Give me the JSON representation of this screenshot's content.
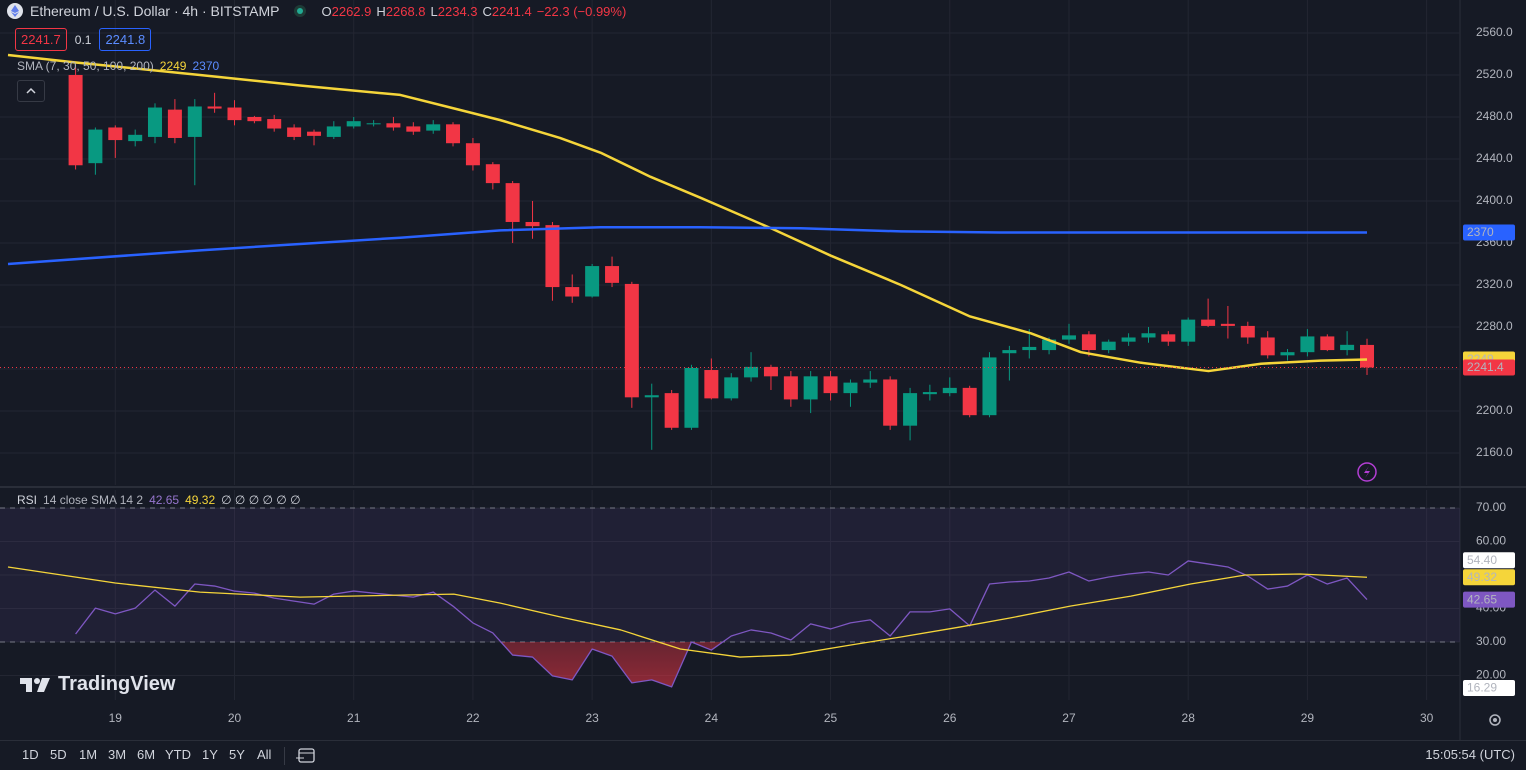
{
  "header": {
    "symbol": "Ethereum / U.S. Dollar · 4h · BITSTAMP",
    "ohlc_labels": [
      "O",
      "H",
      "L",
      "C"
    ],
    "change": "−22.3 (−0.99%)",
    "sell": "2241.7",
    "spread": "0.1",
    "buy": "2241.8",
    "sma_legend": "SMA (7, 30, 50, 100, 200)",
    "rsi_legend": "RSI",
    "rsi_params": "14 close SMA 14 2",
    "rsi_extra": "∅ ∅ ∅ ∅ ∅ ∅"
  },
  "chart_data": [
    {
      "type": "candlestick",
      "up_color": "#089981",
      "down_color": "#f23645",
      "grid": true,
      "xlim": [
        18.1,
        30.28
      ],
      "ylim": [
        2129.5,
        2591.4
      ],
      "yticks": [
        {
          "value": 2160,
          "label": "2160.0"
        },
        {
          "value": 2200,
          "label": "2200.0"
        },
        {
          "value": 2240,
          "label": "2240.0"
        },
        {
          "value": 2280,
          "label": "2280.0"
        },
        {
          "value": 2320,
          "label": "2320.0"
        },
        {
          "value": 2360,
          "label": "2360.0"
        },
        {
          "value": 2400,
          "label": "2400.0"
        },
        {
          "value": 2440,
          "label": "2440.0"
        },
        {
          "value": 2480,
          "label": "2480.0"
        },
        {
          "value": 2520,
          "label": "2520.0"
        },
        {
          "value": 2560,
          "label": "2560.0"
        }
      ],
      "x": [
        18.667,
        18.833,
        19,
        19.167,
        19.333,
        19.5,
        19.667,
        19.833,
        20,
        20.167,
        20.333,
        20.5,
        20.667,
        20.833,
        21,
        21.167,
        21.333,
        21.5,
        21.667,
        21.833,
        22,
        22.167,
        22.333,
        22.5,
        22.667,
        22.833,
        23,
        23.167,
        23.333,
        23.5,
        23.667,
        23.833,
        24,
        24.167,
        24.333,
        24.5,
        24.667,
        24.833,
        25,
        25.167,
        25.333,
        25.5,
        25.667,
        25.833,
        26,
        26.167,
        26.333,
        26.5,
        26.667,
        26.833,
        27,
        27.167,
        27.333,
        27.5,
        27.667,
        27.833,
        28,
        28.167,
        28.333,
        28.5,
        28.667,
        28.833,
        29,
        29.167,
        29.333,
        29.5
      ],
      "open": [
        2520,
        2436,
        2470,
        2457,
        2461,
        2487,
        2461,
        2490,
        2489,
        2480,
        2478,
        2470,
        2466,
        2461,
        2471,
        2473,
        2474,
        2471,
        2467,
        2473,
        2455,
        2435,
        2417,
        2380,
        2377,
        2318,
        2309,
        2338,
        2321,
        2213,
        2217,
        2184,
        2239,
        2212,
        2232,
        2242,
        2233,
        2211,
        2233,
        2217,
        2227,
        2230,
        2186,
        2216,
        2217,
        2222,
        2196,
        2255,
        2258,
        2258,
        2268,
        2273,
        2258,
        2266,
        2270,
        2273,
        2266,
        2287,
        2283,
        2281,
        2270,
        2253,
        2256,
        2271,
        2258,
        2262.9
      ],
      "high": [
        2527,
        2470,
        2472,
        2468,
        2493,
        2497,
        2497,
        2503,
        2496,
        2481,
        2482,
        2473,
        2468,
        2476,
        2480,
        2477,
        2480,
        2475,
        2477,
        2475,
        2460,
        2437,
        2419,
        2400,
        2380,
        2330,
        2340,
        2347,
        2323,
        2226,
        2220,
        2244,
        2250,
        2236,
        2256,
        2244,
        2238,
        2238,
        2238,
        2230,
        2238,
        2233,
        2222,
        2225,
        2232,
        2224,
        2256,
        2262,
        2278,
        2270,
        2283,
        2276,
        2268,
        2274,
        2280,
        2276,
        2289,
        2307,
        2300,
        2285,
        2276,
        2259,
        2278,
        2273,
        2276,
        2268.8
      ],
      "low": [
        2430,
        2425,
        2441,
        2452,
        2455,
        2455,
        2415,
        2484,
        2472,
        2474,
        2466,
        2458,
        2453,
        2459,
        2469,
        2471,
        2467,
        2463,
        2464,
        2452,
        2429,
        2411,
        2360,
        2364,
        2305,
        2303,
        2308,
        2318,
        2203,
        2163,
        2182,
        2182,
        2211,
        2210,
        2228,
        2220,
        2204,
        2198,
        2210,
        2204,
        2222,
        2182,
        2172,
        2210,
        2214,
        2194,
        2194,
        2229,
        2250,
        2254,
        2264,
        2252,
        2255,
        2262,
        2265,
        2262,
        2262,
        2280,
        2269,
        2264,
        2250,
        2248,
        2252,
        2257,
        2253,
        2234.3
      ],
      "close": [
        2434,
        2468,
        2458,
        2463,
        2489,
        2460,
        2490,
        2488,
        2477,
        2476,
        2469,
        2461,
        2462,
        2471,
        2476,
        2474,
        2470,
        2466,
        2473,
        2455,
        2434,
        2417,
        2380,
        2376,
        2318,
        2309,
        2338,
        2322,
        2213,
        2215,
        2184,
        2241,
        2212,
        2232,
        2242,
        2233,
        2211,
        2233,
        2217,
        2227,
        2230,
        2186,
        2217,
        2218,
        2222,
        2196,
        2251,
        2258,
        2261,
        2268,
        2272,
        2258,
        2266,
        2270,
        2274,
        2266,
        2287,
        2281,
        2281,
        2270,
        2253,
        2256,
        2271,
        2258,
        2263,
        2241.4
      ],
      "series": [
        {
          "color": "#f5d53a",
          "x": [
            18.1,
            18.66,
            19.71,
            20.55,
            21.39,
            21.81,
            22.23,
            22.73,
            23.07,
            23.49,
            23.91,
            24.5,
            25.0,
            25.59,
            26.17,
            26.68,
            27.1,
            27.6,
            28.17,
            28.61,
            29.11,
            29.5
          ],
          "values": [
            2539,
            2532,
            2520,
            2510,
            2501,
            2489,
            2477,
            2460,
            2446,
            2423,
            2403,
            2374,
            2348,
            2320,
            2290,
            2274,
            2256,
            2246,
            2238,
            2245,
            2248,
            2249
          ]
        },
        {
          "color": "#2962ff",
          "x": [
            18.1,
            19.71,
            21.39,
            22.23,
            23.07,
            23.91,
            24.75,
            25.59,
            26.42,
            27.26,
            28.1,
            28.94,
            29.5
          ],
          "values": [
            2340,
            2353,
            2365,
            2372,
            2375,
            2375,
            2374,
            2371,
            2370,
            2370,
            2370,
            2370,
            2370
          ]
        }
      ]
    },
    {
      "type": "line",
      "grid": true,
      "xlim": [
        18.1,
        30.28
      ],
      "xticks": [
        19,
        20,
        21,
        22,
        23,
        24,
        25,
        26,
        27,
        28,
        29,
        30
      ],
      "ylim": [
        12.69,
        75.37
      ],
      "yticks": [
        {
          "value": 20,
          "label": "20.00"
        },
        {
          "value": 30,
          "label": "30.00"
        },
        {
          "value": 40,
          "label": "40.00"
        },
        {
          "value": 50,
          "label": "50.00"
        },
        {
          "value": 60,
          "label": "60.00"
        },
        {
          "value": 70,
          "label": "70.00"
        }
      ],
      "bands": [
        30,
        70
      ],
      "markers": [
        {
          "value": 54.4,
          "label": "54.40"
        },
        {
          "value": 16.29,
          "label": "16.29"
        }
      ],
      "x": [
        18.667,
        18.833,
        19,
        19.167,
        19.333,
        19.5,
        19.667,
        19.833,
        20,
        20.167,
        20.333,
        20.5,
        20.667,
        20.833,
        21,
        21.167,
        21.333,
        21.5,
        21.667,
        21.833,
        22,
        22.167,
        22.333,
        22.5,
        22.667,
        22.833,
        23,
        23.167,
        23.333,
        23.5,
        23.667,
        23.833,
        24,
        24.167,
        24.333,
        24.5,
        24.667,
        24.833,
        25,
        25.167,
        25.333,
        25.5,
        25.667,
        25.833,
        26,
        26.167,
        26.333,
        26.5,
        26.667,
        26.833,
        27,
        27.167,
        27.333,
        27.5,
        27.667,
        27.833,
        28,
        28.167,
        28.333,
        28.5,
        28.667,
        28.833,
        29,
        29.167,
        29.333,
        29.5
      ],
      "series": [
        {
          "color": "#7e57c2",
          "values": [
            32.4,
            40.1,
            38.4,
            40.1,
            45.5,
            40.7,
            47.3,
            46.7,
            45.2,
            44.6,
            43.1,
            42.2,
            41.3,
            44.3,
            45.2,
            44.6,
            44.0,
            43.4,
            44.9,
            40.7,
            35.7,
            32.7,
            26.1,
            25.5,
            19.9,
            18.7,
            27.9,
            25.8,
            17.8,
            18.7,
            16.6,
            30.0,
            27.6,
            31.8,
            33.6,
            32.7,
            30.6,
            35.4,
            33.9,
            35.7,
            36.6,
            31.8,
            39.0,
            39.0,
            39.9,
            34.8,
            47.3,
            47.9,
            48.2,
            49.1,
            50.9,
            48.2,
            49.4,
            50.3,
            50.9,
            50.0,
            54.2,
            53.3,
            52.4,
            49.7,
            45.8,
            46.7,
            50.0,
            47.3,
            49.1,
            42.65
          ]
        },
        {
          "color": "#f5d53a",
          "x": [
            18.1,
            19,
            19.71,
            20.55,
            21.39,
            21.84,
            22.23,
            22.73,
            23.24,
            23.74,
            24.24,
            24.66,
            25.17,
            25.59,
            26.09,
            26.51,
            27.01,
            27.52,
            28.02,
            28.48,
            28.94,
            29.5
          ],
          "values": [
            52.4,
            47.6,
            44.9,
            43.4,
            44.0,
            44.3,
            41.6,
            37.5,
            33.6,
            27.9,
            25.5,
            26.1,
            29.1,
            31.5,
            34.5,
            37.2,
            40.7,
            43.7,
            47.3,
            50.0,
            50.3,
            49.32
          ]
        }
      ]
    }
  ],
  "logo": "TradingView",
  "toolbar": {
    "ranges": [
      "1D",
      "5D",
      "1M",
      "3M",
      "6M",
      "YTD",
      "1Y",
      "5Y",
      "All"
    ],
    "clock": "15:05:54 (UTC)"
  }
}
